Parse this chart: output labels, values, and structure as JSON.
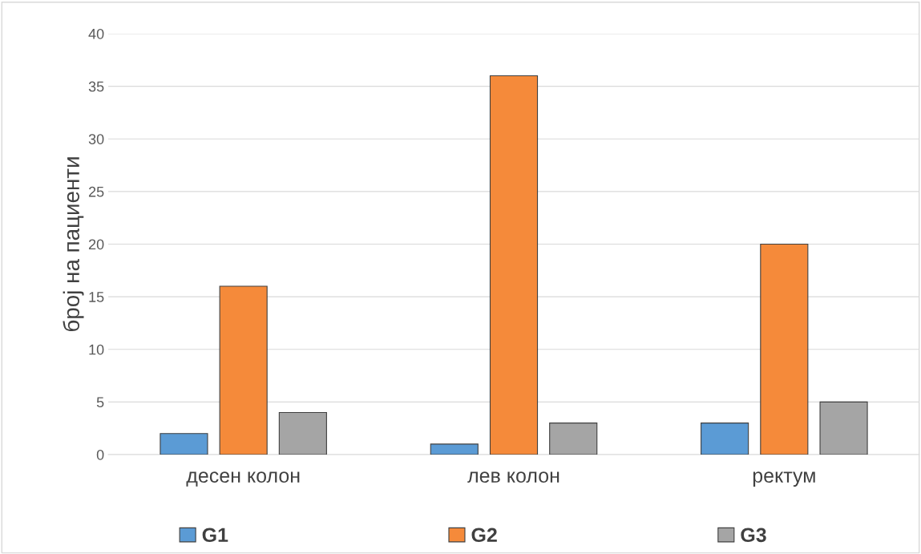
{
  "chart_data": {
    "type": "bar",
    "ylabel": "број на пациенти",
    "categories": [
      "десен колон",
      "лев колон",
      "ректум"
    ],
    "series": [
      {
        "name": "G1",
        "color": "#5b9bd5",
        "values": [
          2,
          1,
          3
        ]
      },
      {
        "name": "G2",
        "color": "#f58a3a",
        "values": [
          16,
          36,
          20
        ]
      },
      {
        "name": "G3",
        "color": "#a5a5a5",
        "values": [
          4,
          3,
          5
        ]
      }
    ],
    "ylim": [
      0,
      40
    ],
    "yticks": [
      0,
      5,
      10,
      15,
      20,
      25,
      30,
      35,
      40
    ],
    "grid": "y",
    "legend": "bottom"
  }
}
